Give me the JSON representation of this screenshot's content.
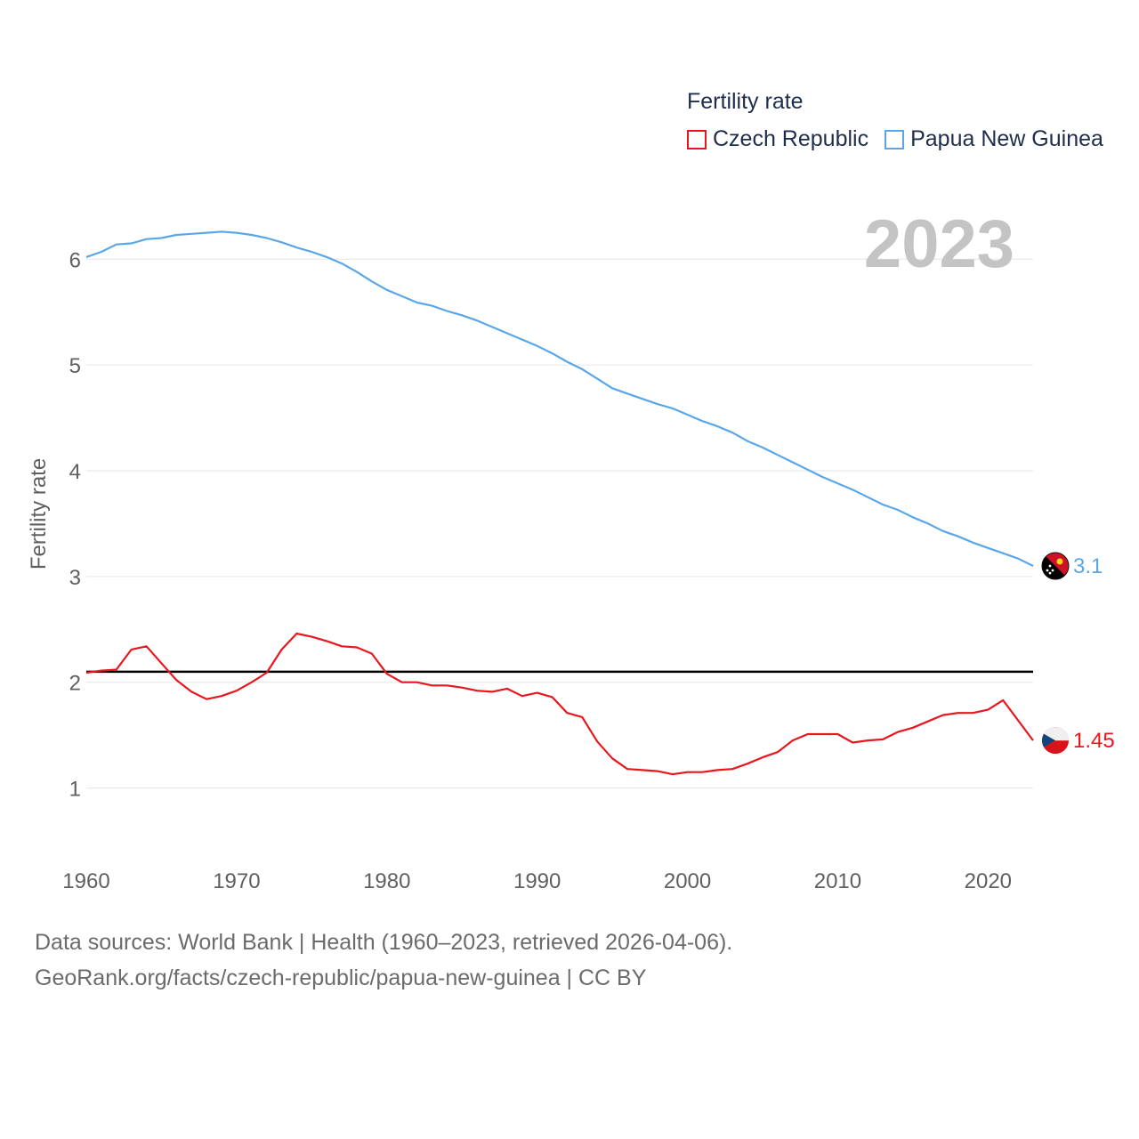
{
  "legend": {
    "title": "Fertility rate",
    "items": [
      {
        "label": "Czech Republic",
        "color": "#e8171e"
      },
      {
        "label": "Papua New Guinea",
        "color": "#5aa7e8"
      }
    ]
  },
  "footer": {
    "line1": "Data sources: World Bank | Health (1960–2023, retrieved 2026-04-06).",
    "line2": "GeoRank.org/facts/czech-republic/papua-new-guinea | CC BY"
  },
  "chart_data": {
    "type": "line",
    "ylabel": "Fertility rate",
    "year_label": "2023",
    "xlim": [
      1960,
      2023
    ],
    "ylim": [
      0.5,
      6.6
    ],
    "xticks": [
      1960,
      1970,
      1980,
      1990,
      2000,
      2010,
      2020
    ],
    "yticks": [
      1,
      2,
      3,
      4,
      5,
      6
    ],
    "reference_line": 2.1,
    "x": [
      1960,
      1961,
      1962,
      1963,
      1964,
      1965,
      1966,
      1967,
      1968,
      1969,
      1970,
      1971,
      1972,
      1973,
      1974,
      1975,
      1976,
      1977,
      1978,
      1979,
      1980,
      1981,
      1982,
      1983,
      1984,
      1985,
      1986,
      1987,
      1988,
      1989,
      1990,
      1991,
      1992,
      1993,
      1994,
      1995,
      1996,
      1997,
      1998,
      1999,
      2000,
      2001,
      2002,
      2003,
      2004,
      2005,
      2006,
      2007,
      2008,
      2009,
      2010,
      2011,
      2012,
      2013,
      2014,
      2015,
      2016,
      2017,
      2018,
      2019,
      2020,
      2021,
      2022,
      2023
    ],
    "series": [
      {
        "name": "Czech Republic",
        "color": "#e8171e",
        "end_label": "1.45",
        "values": [
          2.09,
          2.11,
          2.12,
          2.31,
          2.34,
          2.18,
          2.02,
          1.91,
          1.84,
          1.87,
          1.92,
          2.0,
          2.09,
          2.31,
          2.46,
          2.43,
          2.39,
          2.34,
          2.33,
          2.27,
          2.08,
          2.0,
          2.0,
          1.97,
          1.97,
          1.95,
          1.92,
          1.91,
          1.94,
          1.87,
          1.9,
          1.86,
          1.71,
          1.67,
          1.44,
          1.28,
          1.18,
          1.17,
          1.16,
          1.13,
          1.15,
          1.15,
          1.17,
          1.18,
          1.23,
          1.29,
          1.34,
          1.45,
          1.51,
          1.51,
          1.51,
          1.43,
          1.45,
          1.46,
          1.53,
          1.57,
          1.63,
          1.69,
          1.71,
          1.71,
          1.74,
          1.83,
          1.64,
          1.45
        ]
      },
      {
        "name": "Papua New Guinea",
        "color": "#5aa7e8",
        "end_label": "3.1",
        "values": [
          6.02,
          6.07,
          6.14,
          6.15,
          6.19,
          6.2,
          6.23,
          6.24,
          6.25,
          6.26,
          6.25,
          6.23,
          6.2,
          6.16,
          6.11,
          6.07,
          6.02,
          5.96,
          5.88,
          5.79,
          5.71,
          5.65,
          5.59,
          5.56,
          5.51,
          5.47,
          5.42,
          5.36,
          5.3,
          5.24,
          5.18,
          5.11,
          5.03,
          4.96,
          4.87,
          4.78,
          4.73,
          4.68,
          4.63,
          4.59,
          4.53,
          4.47,
          4.42,
          4.36,
          4.28,
          4.22,
          4.15,
          4.08,
          4.01,
          3.94,
          3.88,
          3.82,
          3.75,
          3.68,
          3.63,
          3.56,
          3.5,
          3.43,
          3.38,
          3.32,
          3.27,
          3.22,
          3.17,
          3.1
        ]
      }
    ]
  }
}
